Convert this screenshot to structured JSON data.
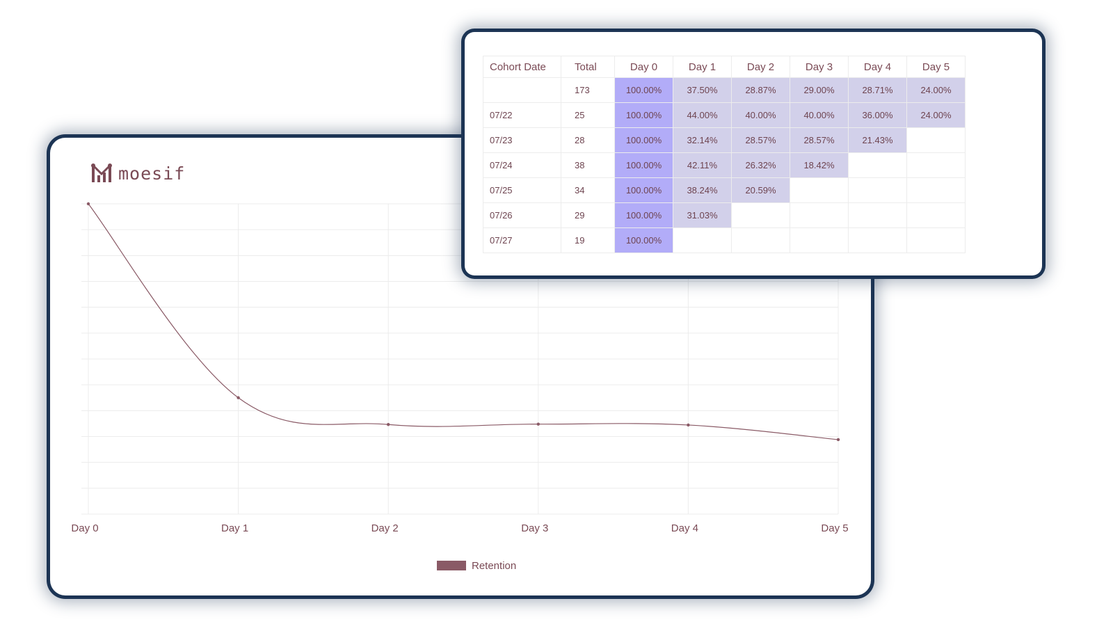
{
  "logo": {
    "text": "moesif"
  },
  "chart_data": {
    "type": "line",
    "categories": [
      "Day 0",
      "Day 1",
      "Day 2",
      "Day 3",
      "Day 4",
      "Day 5"
    ],
    "series": [
      {
        "name": "Retention",
        "values": [
          100.0,
          37.5,
          28.87,
          29.0,
          28.71,
          24.0
        ]
      }
    ],
    "ylim": [
      0,
      100
    ],
    "grid": true,
    "legend": "bottom",
    "colors": {
      "line": "#8a5a66",
      "legend_swatch": "#8a5a66",
      "grid": "#ececec"
    }
  },
  "table": {
    "headers": [
      "Cohort Date",
      "Total",
      "Day 0",
      "Day 1",
      "Day 2",
      "Day 3",
      "Day 4",
      "Day 5"
    ],
    "rows": [
      {
        "date": "",
        "total": "173",
        "days": [
          "100.00%",
          "37.50%",
          "28.87%",
          "29.00%",
          "28.71%",
          "24.00%"
        ]
      },
      {
        "date": "07/22",
        "total": "25",
        "days": [
          "100.00%",
          "44.00%",
          "40.00%",
          "40.00%",
          "36.00%",
          "24.00%"
        ]
      },
      {
        "date": "07/23",
        "total": "28",
        "days": [
          "100.00%",
          "32.14%",
          "28.57%",
          "28.57%",
          "21.43%"
        ]
      },
      {
        "date": "07/24",
        "total": "38",
        "days": [
          "100.00%",
          "42.11%",
          "26.32%",
          "18.42%"
        ]
      },
      {
        "date": "07/25",
        "total": "34",
        "days": [
          "100.00%",
          "38.24%",
          "20.59%"
        ]
      },
      {
        "date": "07/26",
        "total": "29",
        "days": [
          "100.00%",
          "31.03%"
        ]
      },
      {
        "date": "07/27",
        "total": "19",
        "days": [
          "100.00%"
        ]
      }
    ],
    "colors": {
      "day0": "#b2acf8",
      "day_other": "#d2d0ea"
    }
  }
}
